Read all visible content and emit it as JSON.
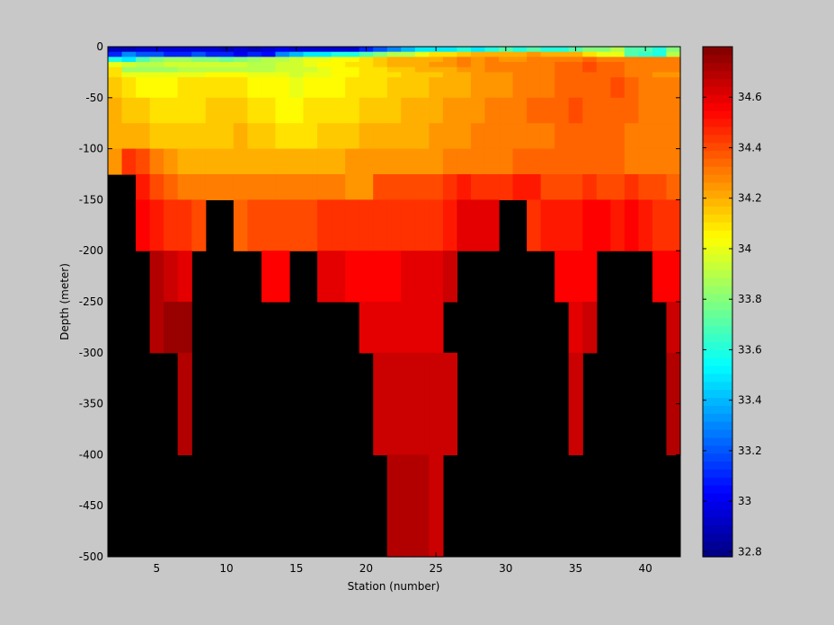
{
  "chart_data": {
    "type": "heatmap",
    "title": "",
    "xlabel": "Station (number)",
    "ylabel": "Depth (meter)",
    "xlim": [
      1.5,
      42.5
    ],
    "ylim": [
      -500,
      0
    ],
    "x_ticks": [
      5,
      10,
      15,
      20,
      25,
      30,
      35,
      40
    ],
    "y_ticks": [
      0,
      -50,
      -100,
      -150,
      -200,
      -250,
      -300,
      -350,
      -400,
      -450,
      -500
    ],
    "x": [
      2,
      3,
      4,
      5,
      6,
      7,
      8,
      9,
      10,
      11,
      12,
      13,
      14,
      15,
      16,
      17,
      18,
      19,
      20,
      21,
      22,
      23,
      24,
      25,
      26,
      27,
      28,
      29,
      30,
      31,
      32,
      33,
      34,
      35,
      36,
      37,
      38,
      39,
      40,
      41,
      42
    ],
    "depth_levels": [
      0,
      -5,
      -10,
      -15,
      -20,
      -25,
      -30,
      -50,
      -75,
      -100,
      -125,
      -150,
      -200,
      -250,
      -300,
      -400,
      -500
    ],
    "grid": false,
    "colorbar": {
      "colormap": "jet",
      "range": [
        32.78,
        34.8
      ],
      "ticks": [
        32.8,
        33,
        33.2,
        33.4,
        33.6,
        33.8,
        34,
        34.2,
        34.4,
        34.6
      ]
    },
    "missing_color": "#000000",
    "rows": [
      [
        32.9,
        32.9,
        32.95,
        32.95,
        32.95,
        32.95,
        32.95,
        32.95,
        32.9,
        32.95,
        32.9,
        32.95,
        33.0,
        32.95,
        32.95,
        32.95,
        32.95,
        32.95,
        33.1,
        33.2,
        33.3,
        33.4,
        33.5,
        33.5,
        33.5,
        33.6,
        33.5,
        33.6,
        33.7,
        33.6,
        33.7,
        33.6,
        33.6,
        33.7,
        33.8,
        33.8,
        33.9,
        33.7,
        33.7,
        33.6,
        33.8
      ],
      [
        33.1,
        33.3,
        33.2,
        33.2,
        33.1,
        33.1,
        33.2,
        33.1,
        33.1,
        33.0,
        33.1,
        33.05,
        33.3,
        33.4,
        33.5,
        33.5,
        33.6,
        33.6,
        33.7,
        33.8,
        33.9,
        33.9,
        34.0,
        34.1,
        34.1,
        34.15,
        34.2,
        34.2,
        34.2,
        34.2,
        34.25,
        34.2,
        34.2,
        34.2,
        34.1,
        34.0,
        34.0,
        33.7,
        33.65,
        33.6,
        33.9
      ],
      [
        33.6,
        33.5,
        33.7,
        33.8,
        33.85,
        33.85,
        33.8,
        33.8,
        33.75,
        33.8,
        33.85,
        33.9,
        33.9,
        33.95,
        34.0,
        34.0,
        34.05,
        34.05,
        34.1,
        34.15,
        34.2,
        34.2,
        34.2,
        34.2,
        34.25,
        34.3,
        34.25,
        34.3,
        34.25,
        34.25,
        34.3,
        34.3,
        34.3,
        34.3,
        34.35,
        34.3,
        34.3,
        34.3,
        34.3,
        34.3,
        34.3
      ],
      [
        34.0,
        33.95,
        33.9,
        33.9,
        33.95,
        33.95,
        33.95,
        33.95,
        33.95,
        33.95,
        33.9,
        33.9,
        33.95,
        33.95,
        34.0,
        34.05,
        34.05,
        34.1,
        34.1,
        34.15,
        34.2,
        34.2,
        34.2,
        34.25,
        34.25,
        34.3,
        34.25,
        34.3,
        34.3,
        34.3,
        34.3,
        34.3,
        34.35,
        34.35,
        34.4,
        34.35,
        34.35,
        34.3,
        34.3,
        34.3,
        34.3
      ],
      [
        34.1,
        33.85,
        33.85,
        33.85,
        33.85,
        33.9,
        33.9,
        33.9,
        33.9,
        33.9,
        33.9,
        33.9,
        33.95,
        33.95,
        33.95,
        34.0,
        34.05,
        34.05,
        34.1,
        34.1,
        34.15,
        34.15,
        34.2,
        34.2,
        34.2,
        34.25,
        34.25,
        34.3,
        34.3,
        34.3,
        34.3,
        34.3,
        34.35,
        34.35,
        34.4,
        34.35,
        34.35,
        34.3,
        34.3,
        34.3,
        34.3
      ],
      [
        34.1,
        34.0,
        34.0,
        34.0,
        34.0,
        34.0,
        34.0,
        34.05,
        34.05,
        34.05,
        34.0,
        34.0,
        34.0,
        33.95,
        34.0,
        34.0,
        34.05,
        34.05,
        34.1,
        34.1,
        34.1,
        34.15,
        34.15,
        34.15,
        34.2,
        34.2,
        34.25,
        34.25,
        34.25,
        34.3,
        34.3,
        34.3,
        34.35,
        34.35,
        34.35,
        34.35,
        34.35,
        34.3,
        34.3,
        34.25,
        34.25
      ],
      [
        34.15,
        34.1,
        34.05,
        34.05,
        34.05,
        34.1,
        34.1,
        34.1,
        34.1,
        34.1,
        34.05,
        34.05,
        34.05,
        34.0,
        34.05,
        34.05,
        34.05,
        34.1,
        34.1,
        34.1,
        34.15,
        34.15,
        34.15,
        34.2,
        34.2,
        34.2,
        34.25,
        34.25,
        34.25,
        34.3,
        34.3,
        34.3,
        34.35,
        34.35,
        34.35,
        34.35,
        34.4,
        34.35,
        34.3,
        34.3,
        34.3
      ],
      [
        34.2,
        34.15,
        34.15,
        34.1,
        34.1,
        34.1,
        34.1,
        34.15,
        34.15,
        34.15,
        34.1,
        34.1,
        34.05,
        34.05,
        34.1,
        34.1,
        34.1,
        34.1,
        34.15,
        34.15,
        34.15,
        34.2,
        34.2,
        34.2,
        34.25,
        34.25,
        34.25,
        34.3,
        34.3,
        34.3,
        34.35,
        34.35,
        34.35,
        34.4,
        34.35,
        34.35,
        34.35,
        34.35,
        34.3,
        34.3,
        34.3
      ],
      [
        34.2,
        34.2,
        34.2,
        34.15,
        34.15,
        34.15,
        34.15,
        34.15,
        34.15,
        34.2,
        34.15,
        34.15,
        34.1,
        34.1,
        34.1,
        34.15,
        34.15,
        34.15,
        34.2,
        34.2,
        34.2,
        34.2,
        34.2,
        34.25,
        34.25,
        34.25,
        34.3,
        34.3,
        34.3,
        34.3,
        34.3,
        34.3,
        34.35,
        34.35,
        34.35,
        34.35,
        34.35,
        34.3,
        34.3,
        34.3,
        34.3
      ],
      [
        34.25,
        34.45,
        34.4,
        34.3,
        34.25,
        34.2,
        34.2,
        34.2,
        34.2,
        34.2,
        34.2,
        34.2,
        34.2,
        34.2,
        34.2,
        34.2,
        34.2,
        34.25,
        34.25,
        34.25,
        34.25,
        34.25,
        34.25,
        34.25,
        34.3,
        34.3,
        34.3,
        34.3,
        34.3,
        34.35,
        34.35,
        34.35,
        34.35,
        34.35,
        34.35,
        34.35,
        34.35,
        34.3,
        34.3,
        34.3,
        34.3
      ],
      [
        null,
        null,
        34.5,
        34.4,
        34.35,
        34.3,
        34.3,
        34.3,
        34.3,
        34.3,
        34.3,
        34.3,
        34.3,
        34.3,
        34.3,
        34.3,
        34.3,
        34.25,
        34.25,
        34.4,
        34.4,
        34.4,
        34.4,
        34.4,
        34.45,
        34.5,
        34.45,
        34.45,
        34.45,
        34.5,
        34.5,
        34.4,
        34.4,
        34.4,
        34.45,
        34.4,
        34.4,
        34.45,
        34.4,
        34.4,
        34.35
      ],
      [
        null,
        null,
        34.55,
        34.5,
        34.45,
        34.45,
        34.4,
        null,
        null,
        34.35,
        34.4,
        34.4,
        34.4,
        34.4,
        34.4,
        34.45,
        34.45,
        34.45,
        34.45,
        34.45,
        34.45,
        34.45,
        34.45,
        34.45,
        34.5,
        34.6,
        34.6,
        34.6,
        null,
        null,
        34.45,
        34.5,
        34.5,
        34.5,
        34.55,
        34.55,
        34.5,
        34.55,
        34.5,
        34.45,
        34.45
      ],
      [
        null,
        null,
        null,
        34.7,
        34.65,
        34.6,
        null,
        null,
        null,
        null,
        null,
        34.55,
        34.55,
        null,
        null,
        34.6,
        34.6,
        34.55,
        34.55,
        34.55,
        34.55,
        34.6,
        34.6,
        34.6,
        34.65,
        null,
        null,
        null,
        null,
        null,
        null,
        null,
        34.55,
        34.55,
        34.55,
        null,
        null,
        null,
        null,
        34.55,
        34.55
      ],
      [
        null,
        null,
        null,
        34.7,
        34.75,
        34.75,
        null,
        null,
        null,
        null,
        null,
        null,
        null,
        null,
        null,
        null,
        null,
        null,
        34.6,
        34.6,
        34.6,
        34.6,
        34.6,
        34.6,
        null,
        null,
        null,
        null,
        null,
        null,
        null,
        null,
        null,
        34.6,
        34.65,
        null,
        null,
        null,
        null,
        null,
        34.65
      ],
      [
        null,
        null,
        null,
        null,
        null,
        34.7,
        null,
        null,
        null,
        null,
        null,
        null,
        null,
        null,
        null,
        null,
        null,
        null,
        null,
        34.65,
        34.65,
        34.65,
        34.65,
        34.65,
        34.65,
        null,
        null,
        null,
        null,
        null,
        null,
        null,
        null,
        34.65,
        null,
        null,
        null,
        null,
        null,
        null,
        34.7
      ],
      [
        null,
        null,
        null,
        null,
        null,
        null,
        null,
        null,
        null,
        null,
        null,
        null,
        null,
        null,
        null,
        null,
        null,
        null,
        null,
        null,
        34.7,
        34.7,
        34.7,
        34.65,
        null,
        null,
        null,
        null,
        null,
        null,
        null,
        null,
        null,
        null,
        null,
        null,
        null,
        null,
        null,
        null,
        null
      ]
    ]
  }
}
